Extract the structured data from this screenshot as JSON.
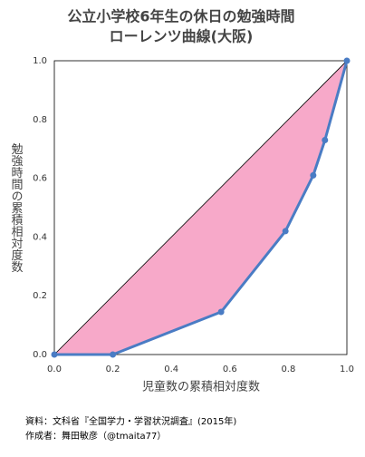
{
  "chart_data": {
    "type": "line",
    "title": "公立小学校6年生の休日の勉強時間",
    "subtitle": "ローレンツ曲線(大阪)",
    "x_label": "児童数の累積相対度数",
    "y_label": "勉強時間の累積相対度数",
    "notes": [
      "資料：文科省『全国学力・学習状況調査』(2015年)",
      "作成者：舞田敏彦（@tmaita77）"
    ],
    "x": [
      0,
      0.2,
      0.57,
      0.79,
      0.885,
      0.925,
      1
    ],
    "values": [
      0,
      0,
      0.145,
      0.42,
      0.61,
      0.73,
      1
    ],
    "color": "#4a7cc4",
    "fill_color": "#f7a9c9",
    "equality_line": {
      "x": [
        0,
        1
      ],
      "values": [
        0,
        1
      ],
      "color": "#000000"
    },
    "xlim": [
      0,
      1
    ],
    "ylim": [
      0,
      1
    ],
    "xticks": [
      {
        "value": 0,
        "label": "0.0"
      },
      0.2,
      0.4,
      0.6,
      0.8,
      {
        "value": 1,
        "label": "1.0"
      }
    ],
    "yticks": [
      {
        "value": 0,
        "label": "0.0"
      },
      0.2,
      0.4,
      0.6,
      0.8,
      {
        "value": 1,
        "label": "1.0"
      }
    ],
    "grid": false
  }
}
